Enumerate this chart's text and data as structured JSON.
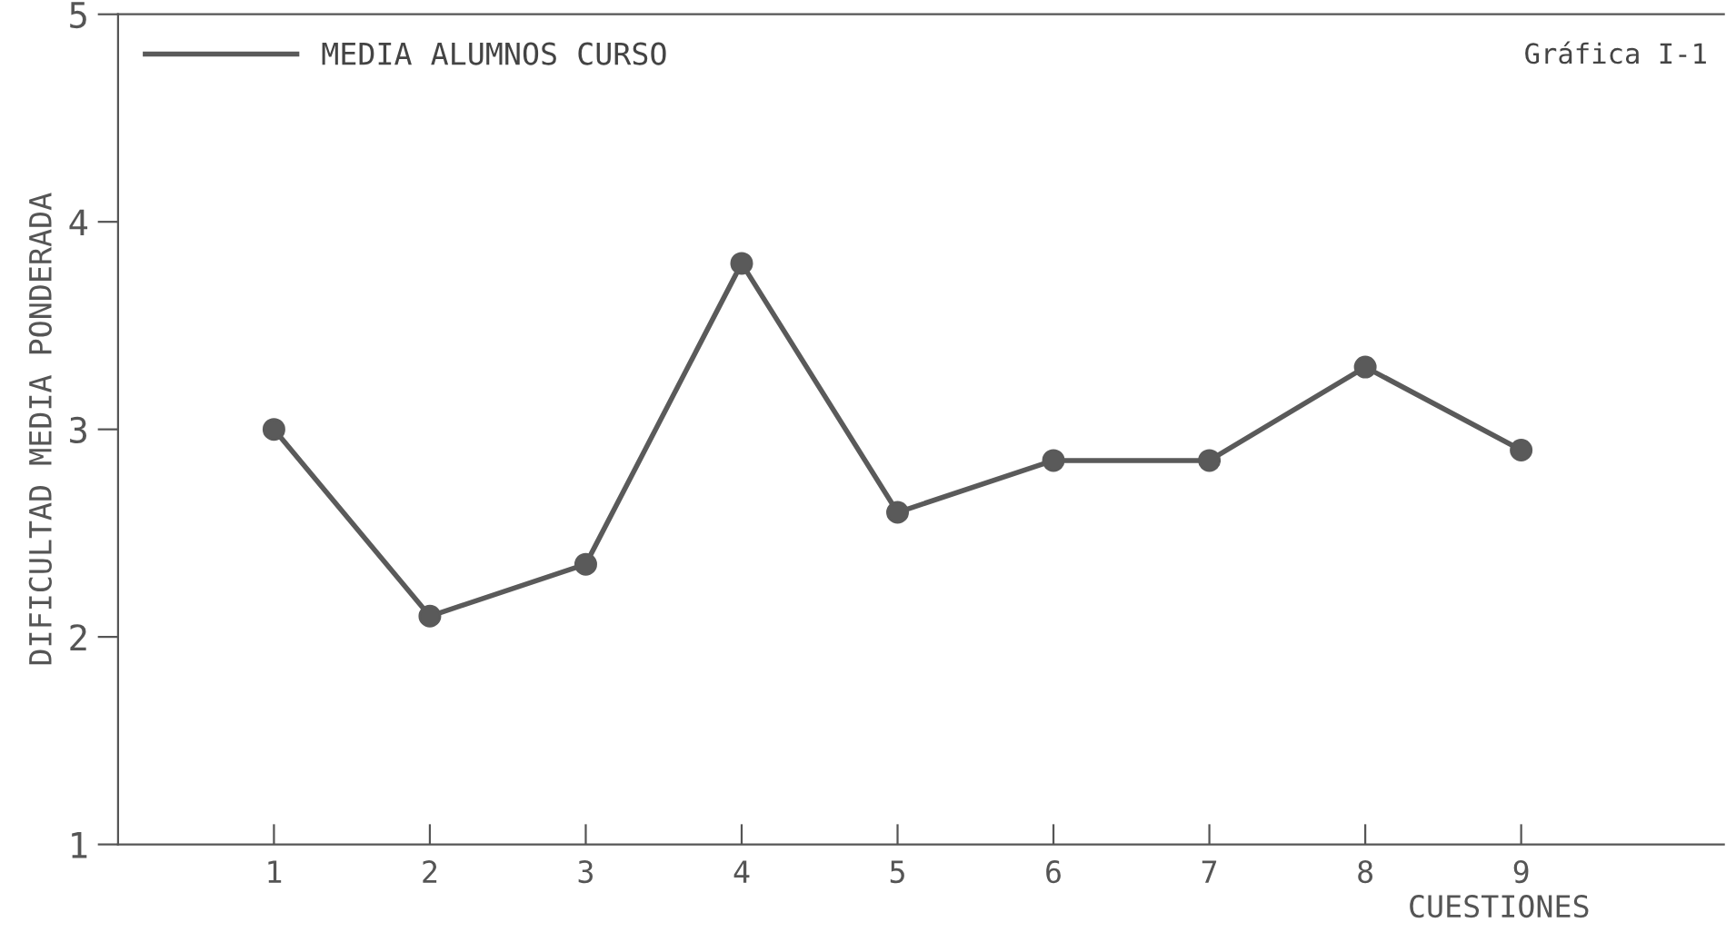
{
  "chart_data": {
    "type": "line",
    "title": "Gráfica I-1",
    "xlabel": "CUESTIONES",
    "ylabel": "DIFICULTAD MEDIA PONDERADA",
    "x": [
      1,
      2,
      3,
      4,
      5,
      6,
      7,
      8,
      9
    ],
    "series": [
      {
        "name": "MEDIA ALUMNOS CURSO",
        "color": "#5a5a5a",
        "values": [
          3.0,
          2.1,
          2.35,
          3.8,
          2.6,
          2.85,
          2.85,
          3.3,
          2.9
        ]
      }
    ],
    "xlim": [
      0,
      10.3
    ],
    "xticks": [
      1,
      2,
      3,
      4,
      5,
      6,
      7,
      8,
      9
    ],
    "ylim": [
      1,
      5
    ],
    "yticks": [
      1,
      2,
      3,
      4,
      5
    ],
    "marker": "circle",
    "line_style": "solid",
    "grid": false,
    "legend": "top left"
  }
}
